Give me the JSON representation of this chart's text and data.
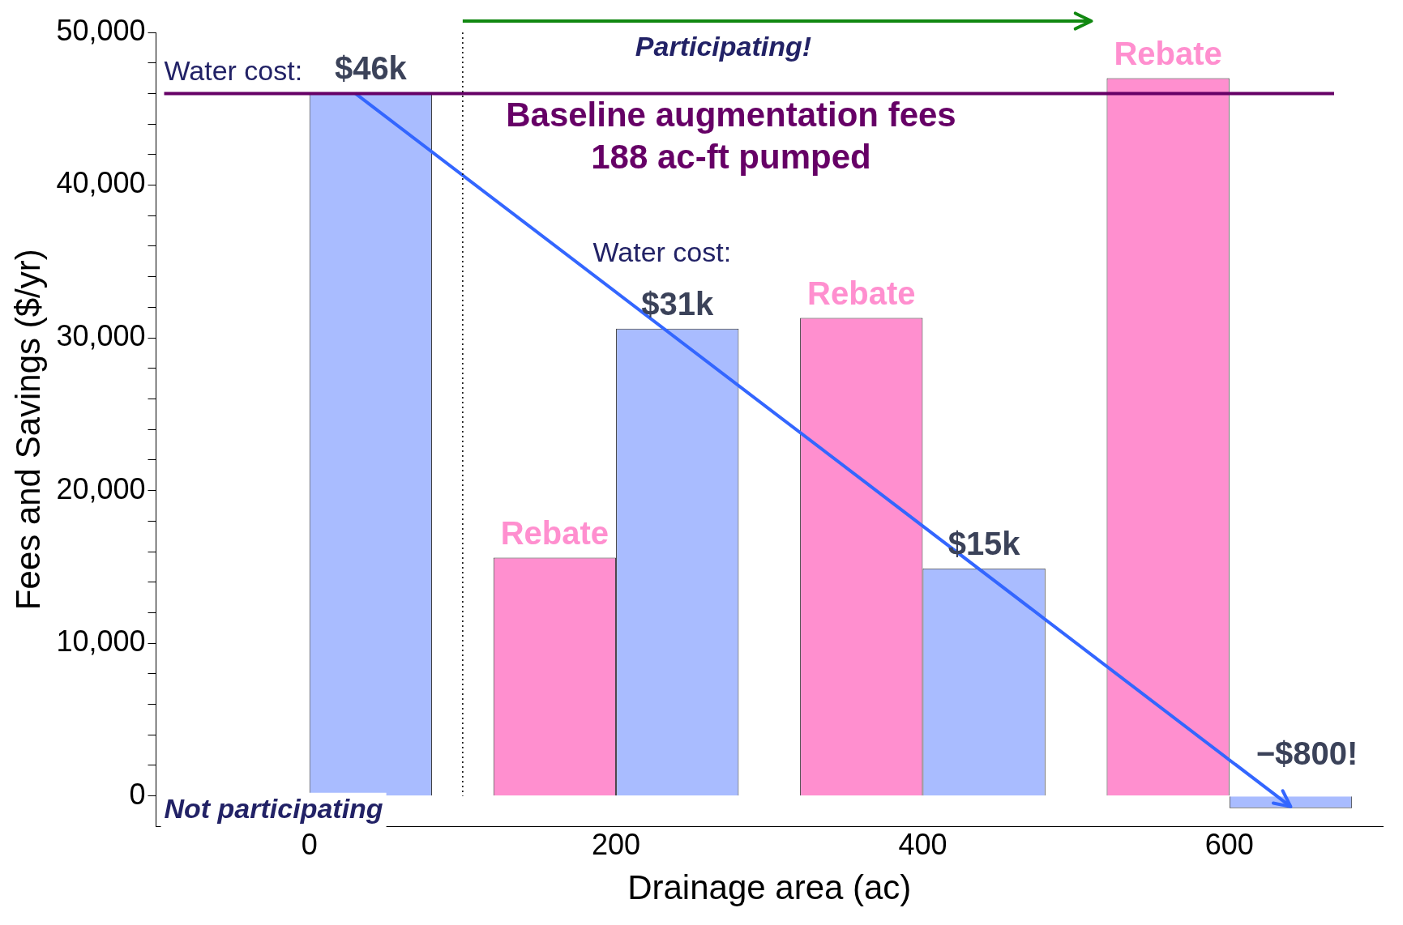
{
  "chart_data": {
    "type": "bar",
    "xlabel": "Drainage area (ac)",
    "ylabel": "Fees and Savings ($/yr)",
    "series": [
      {
        "color": "#ff8fcf",
        "x": [
          200,
          400,
          600
        ],
        "values": [
          15600,
          31300,
          47000
        ],
        "value_labels": [
          "Rebate",
          "Rebate",
          "Rebate"
        ]
      },
      {
        "color": "#a9bcff",
        "x": [
          0,
          200,
          400,
          600
        ],
        "values": [
          46000,
          30600,
          14900,
          -800
        ],
        "value_labels": [
          "$46k",
          "$31k",
          "$15k",
          "−$800!"
        ]
      },
      {
        "type": "line",
        "color": "#3366ff",
        "x": [
          30,
          640
        ],
        "values": [
          46000,
          -700
        ]
      }
    ],
    "xlim": [
      -100,
      700
    ],
    "xticks": [
      0,
      200,
      400,
      600
    ],
    "ylim": [
      -2000,
      50000
    ],
    "yticks": [
      0,
      {
        "value": 2000,
        "label": null
      },
      {
        "value": 4000,
        "label": null
      },
      {
        "value": 6000,
        "label": null
      },
      {
        "value": 8000,
        "label": null
      },
      {
        "value": 10000,
        "label": "10,000"
      },
      {
        "value": 12000,
        "label": null
      },
      {
        "value": 14000,
        "label": null
      },
      {
        "value": 16000,
        "label": null
      },
      {
        "value": 18000,
        "label": null
      },
      {
        "value": 20000,
        "label": "20,000"
      },
      {
        "value": 22000,
        "label": null
      },
      {
        "value": 24000,
        "label": null
      },
      {
        "value": 26000,
        "label": null
      },
      {
        "value": 28000,
        "label": null
      },
      {
        "value": 30000,
        "label": "30,000"
      },
      {
        "value": 32000,
        "label": null
      },
      {
        "value": 34000,
        "label": null
      },
      {
        "value": 36000,
        "label": null
      },
      {
        "value": 38000,
        "label": null
      },
      {
        "value": 40000,
        "label": "40,000"
      },
      {
        "value": 42000,
        "label": null
      },
      {
        "value": 44000,
        "label": null
      },
      {
        "value": 46000,
        "label": null
      },
      {
        "value": 48000,
        "label": null
      },
      {
        "value": 50000,
        "label": "50,000"
      }
    ],
    "ref_lines": [
      {
        "axis": "y",
        "value": 46000,
        "label": "Baseline augmentation fees\n188 ac-ft pumped",
        "color": "#660066"
      },
      {
        "axis": "x",
        "value": 100,
        "line_style": "dotted",
        "color": "#000000"
      }
    ],
    "annotations": [
      "Water cost:",
      "Water cost:",
      "Participating!",
      "Not participating"
    ],
    "grid": false,
    "legend": false
  }
}
